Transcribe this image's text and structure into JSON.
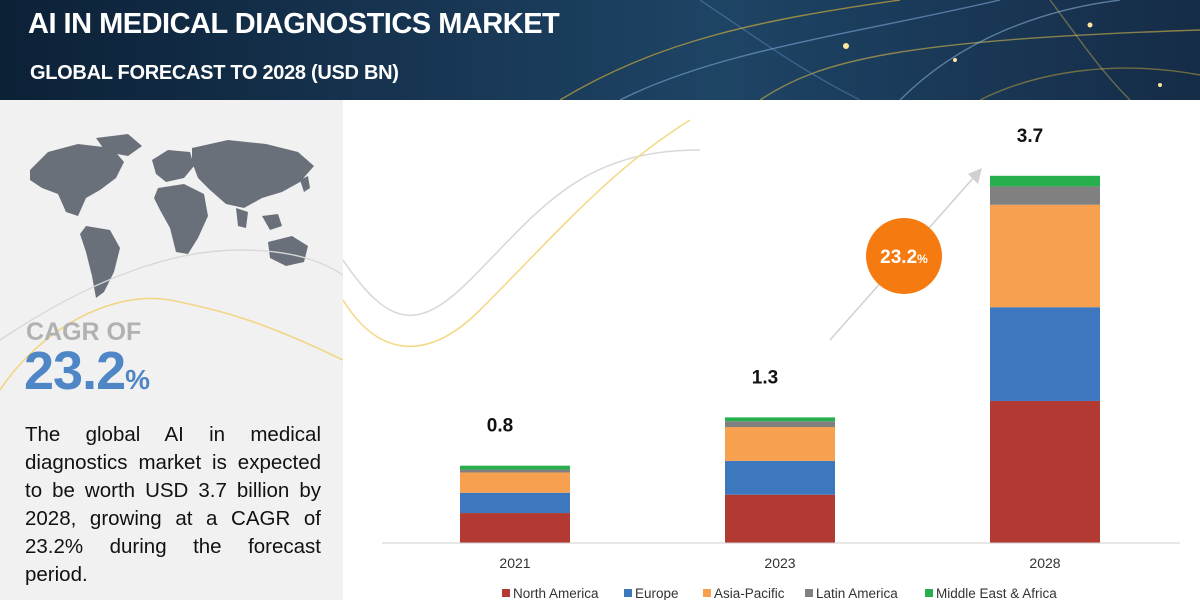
{
  "header": {
    "title": "AI IN MEDICAL DIAGNOSTICS MARKET",
    "subtitle": "GLOBAL FORECAST TO 2028 (USD BN)"
  },
  "side_panel": {
    "cagr_label": "CAGR OF",
    "cagr_number": "23.2",
    "cagr_symbol": "%",
    "description": "The global AI in medical diagnostics market is expected to be worth USD 3.7 billion by 2028, growing at a CAGR of 23.2% during the forecast period.",
    "map_icon": "world-map-icon"
  },
  "colors": {
    "North America": "#b33a33",
    "Europe": "#3d78be",
    "Asia-Pacific": "#f7a04f",
    "Latin America": "#808080",
    "Middle East & Africa": "#27ae4d",
    "cagr_bubble": "#f57a0f",
    "cagr_value": "#4f86c6"
  },
  "chart_data": {
    "type": "bar",
    "stacked": true,
    "categories": [
      "2021",
      "2023",
      "2028"
    ],
    "series": [
      {
        "name": "North America",
        "values": [
          0.31,
          0.5,
          1.47
        ]
      },
      {
        "name": "Europe",
        "values": [
          0.21,
          0.35,
          0.97
        ]
      },
      {
        "name": "Asia-Pacific",
        "values": [
          0.21,
          0.35,
          1.06
        ]
      },
      {
        "name": "Latin America",
        "values": [
          0.03,
          0.06,
          0.19
        ]
      },
      {
        "name": "Middle East & Africa",
        "values": [
          0.04,
          0.04,
          0.11
        ]
      }
    ],
    "totals": [
      "0.8",
      "1.3",
      "3.7"
    ],
    "ylim": [
      0,
      3.8
    ],
    "grid": false,
    "legend_position": "bottom",
    "annotation": {
      "value": "23.2",
      "symbol": "%",
      "label": "CAGR"
    }
  }
}
